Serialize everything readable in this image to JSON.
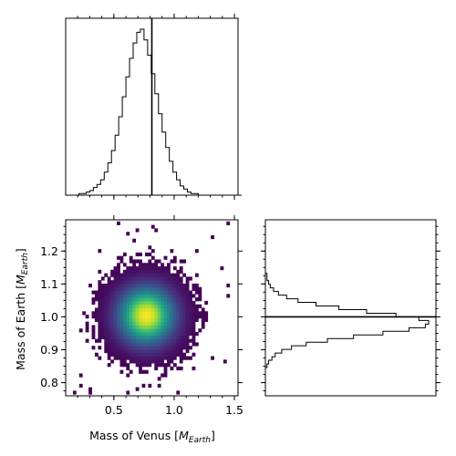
{
  "chart_data": [
    {
      "type": "histogram",
      "panel": "top-left",
      "variable": "Mass of Venus",
      "xlim": [
        0.1,
        1.53
      ],
      "bins": {
        "start": 0.12,
        "width": 0.03,
        "counts": [
          0,
          0,
          0,
          1,
          1,
          2,
          3,
          5,
          7,
          10,
          15,
          21,
          29,
          39,
          51,
          64,
          77,
          89,
          99,
          106,
          108,
          101,
          91,
          79,
          66,
          53,
          41,
          31,
          22,
          15,
          10,
          6,
          4,
          2,
          1,
          1,
          0,
          0,
          0,
          0,
          0,
          0,
          0,
          0,
          0,
          0,
          0,
          0
        ]
      },
      "truth": 0.815
    },
    {
      "type": "heatmap",
      "panel": "bottom-left",
      "xlabel_plain": "Mass of Venus [",
      "xlabel_sub": "Earth",
      "xlabel_close": "]",
      "ylabel_plain": "Mass of Earth [",
      "ylabel_sub": "Earth",
      "ylabel_close": "]",
      "xlim": [
        0.1,
        1.53
      ],
      "ylim": [
        0.76,
        1.295
      ],
      "xticks": [
        0.5,
        1.0,
        1.5
      ],
      "xtick_labels": [
        "0.5",
        "1.0",
        "1.5"
      ],
      "yticks": [
        0.8,
        0.9,
        1.0,
        1.1,
        1.2
      ],
      "ytick_labels": [
        "0.8",
        "0.9",
        "1.0",
        "1.1",
        "1.2"
      ],
      "center": [
        0.77,
        1.005
      ],
      "spread": [
        0.16,
        0.06
      ],
      "colormap": "viridis"
    },
    {
      "type": "histogram",
      "panel": "bottom-right",
      "orientation": "horizontal",
      "variable": "Mass of Earth",
      "ylim": [
        0.76,
        1.295
      ],
      "bins": {
        "start": 0.835,
        "width": 0.011,
        "counts": [
          0,
          1,
          2,
          4,
          6,
          10,
          16,
          25,
          38,
          54,
          72,
          88,
          98,
          100,
          94,
          80,
          62,
          45,
          31,
          20,
          13,
          8,
          5,
          3,
          2,
          1,
          1,
          0,
          0,
          0,
          0
        ]
      },
      "truth": 1.0
    }
  ],
  "colors": {
    "frame": "#000000",
    "background": "#ffffff"
  }
}
